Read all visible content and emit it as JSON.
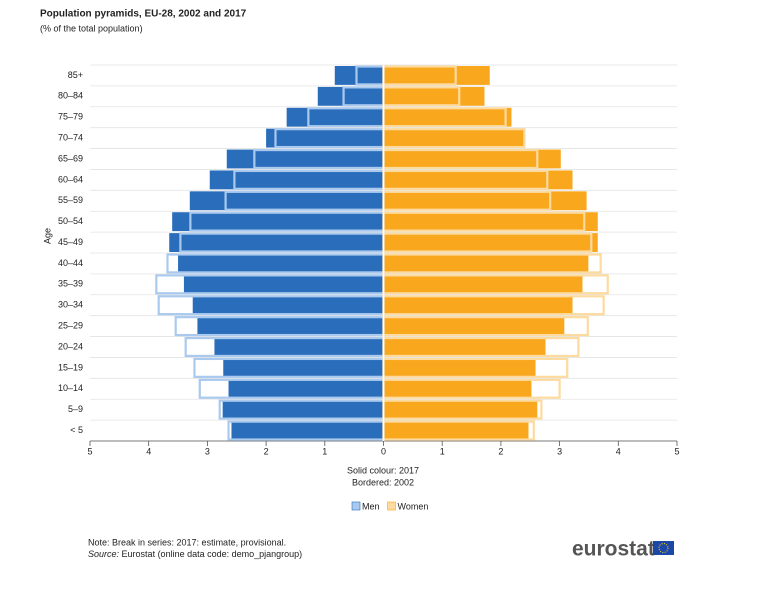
{
  "chart_data": {
    "type": "pyramid",
    "title": "Population pyramids, EU-28, 2002 and 2017",
    "subtitle": "(% of the total population)",
    "y_label": "Age",
    "annotations": [
      "Solid colour: 2017",
      "Bordered: 2002"
    ],
    "categories": [
      "85+",
      "80–84",
      "75–79",
      "70–74",
      "65–69",
      "60–64",
      "55–59",
      "50–54",
      "45–49",
      "40–44",
      "35–39",
      "30–34",
      "25–29",
      "20–24",
      "15–19",
      "10–14",
      "5–9",
      "< 5"
    ],
    "series": [
      {
        "name": "Men",
        "side": "left",
        "color": "#2a6ebb",
        "border_color": "#a9c9ef",
        "values": [
          0.83,
          1.12,
          1.65,
          2.0,
          2.67,
          2.96,
          3.3,
          3.6,
          3.65,
          3.5,
          3.4,
          3.25,
          3.17,
          2.88,
          2.73,
          2.64,
          2.74,
          2.59
        ],
        "values_2002": [
          0.46,
          0.68,
          1.28,
          1.84,
          2.2,
          2.54,
          2.69,
          3.29,
          3.46,
          3.68,
          3.87,
          3.83,
          3.54,
          3.37,
          3.22,
          3.13,
          2.79,
          2.64
        ]
      },
      {
        "name": "Women",
        "side": "right",
        "color": "#f9a71d",
        "border_color": "#fdda9e",
        "values": [
          1.81,
          1.72,
          2.18,
          2.39,
          3.02,
          3.22,
          3.46,
          3.65,
          3.65,
          3.49,
          3.39,
          3.22,
          3.08,
          2.76,
          2.59,
          2.52,
          2.62,
          2.47
        ],
        "values_2002": [
          1.23,
          1.29,
          2.08,
          2.4,
          2.62,
          2.79,
          2.84,
          3.42,
          3.54,
          3.7,
          3.82,
          3.75,
          3.48,
          3.32,
          3.13,
          3.0,
          2.69,
          2.56
        ]
      }
    ],
    "xlim": [
      -5,
      5
    ],
    "xticks": [
      {
        "value": -5,
        "label": "5"
      },
      {
        "value": -4,
        "label": "4"
      },
      {
        "value": -3,
        "label": "3"
      },
      {
        "value": -2,
        "label": "2"
      },
      {
        "value": -1,
        "label": "1"
      },
      0,
      1,
      2,
      3,
      4,
      5
    ],
    "grid": true,
    "note": "Note: Break in series: 2017: estimate, provisional.",
    "source_label": "Source:",
    "source": "Eurostat (online data code: demo_pjangroup)",
    "logo": "eurostat"
  }
}
